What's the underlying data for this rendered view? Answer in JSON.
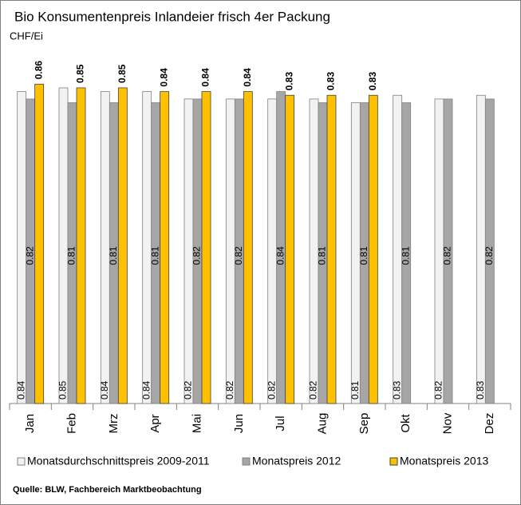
{
  "chart_data": {
    "type": "bar",
    "title": "Bio Konsumentenpreis Inlandeier frisch 4er Packung",
    "y_label": "CHF/Ei",
    "source": "Quelle: BLW, Fachbereich Marktbeobachtung",
    "categories": [
      "Jan",
      "Feb",
      "Mrz",
      "Apr",
      "Mai",
      "Jun",
      "Jul",
      "Aug",
      "Sep",
      "Okt",
      "Nov",
      "Dez"
    ],
    "ylim": [
      0,
      0.88
    ],
    "series": [
      {
        "name": "Monatsdurchschnittspreis 2009-2011",
        "color": "#f2f2f2",
        "values": [
          0.84,
          0.85,
          0.84,
          0.84,
          0.82,
          0.82,
          0.82,
          0.82,
          0.81,
          0.83,
          0.82,
          0.83
        ]
      },
      {
        "name": "Monatspreis 2012",
        "color": "#a6a6a6",
        "values": [
          0.82,
          0.81,
          0.81,
          0.81,
          0.82,
          0.82,
          0.84,
          0.81,
          0.81,
          0.81,
          0.82,
          0.82
        ]
      },
      {
        "name": "Monatspreis 2013",
        "color": "#ffc000",
        "values": [
          0.86,
          0.85,
          0.85,
          0.84,
          0.84,
          0.84,
          0.83,
          0.83,
          0.83,
          null,
          null,
          null
        ]
      }
    ]
  }
}
